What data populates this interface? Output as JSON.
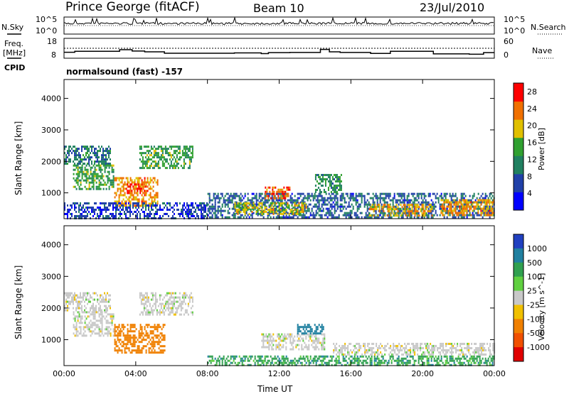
{
  "header": {
    "station": "Prince George (fitACF)",
    "beam": "Beam 10",
    "date": "23/Jul/2010"
  },
  "side_labels": {
    "nsky": "N.Sky",
    "freq_line1": "Freq.",
    "freq_line2": "[MHz]",
    "cpid": "CPID",
    "nsearch": "N.Search",
    "nave": "Nave"
  },
  "noise_axis": {
    "left_top": "10^5",
    "left_bottom": "10^0",
    "right_top": "10^5",
    "right_bottom": "10^0"
  },
  "freq_axis": {
    "left_top": "18",
    "left_bottom": "8",
    "right_top": "60",
    "right_bottom": "0"
  },
  "cpid_text": "normalsound (fast) -157",
  "time_ticks": [
    "00:00",
    "04:00",
    "08:00",
    "12:00",
    "16:00",
    "20:00",
    "00:00"
  ],
  "range_ticks": [
    "1000",
    "2000",
    "3000",
    "4000"
  ],
  "xlabel": "Time UT",
  "colors": {
    "background": "#ffffff",
    "frame": "#000000"
  },
  "chart_data": [
    {
      "type": "line",
      "panel": "noise",
      "series": [
        {
          "name": "N.Sky"
        },
        {
          "name": "N.Search"
        }
      ],
      "x_range_hours": [
        0,
        24
      ],
      "scale": "log"
    },
    {
      "type": "line",
      "panel": "frequency",
      "series": [
        {
          "name": "Freq.",
          "x_hours": [
            0,
            0.6,
            3.1,
            3.8,
            4.5,
            5.6,
            9.5,
            11.0,
            11.4,
            12.6,
            14.3,
            14.8,
            15.4,
            17.1,
            18.2,
            20.6,
            22.6,
            23.4,
            24
          ],
          "values": [
            11.0,
            11.5,
            12.3,
            11.6,
            11.2,
            10.5,
            10.7,
            10.3,
            10.8,
            10.9,
            12.4,
            11.2,
            10.9,
            10.4,
            11.5,
            10.2,
            10.0,
            10.8,
            11.0
          ]
        },
        {
          "name": "Nave",
          "x_hours": [
            0,
            24
          ],
          "values": [
            30,
            30
          ]
        }
      ],
      "x_range_hours": [
        0,
        24
      ],
      "left_ylim": [
        8,
        18
      ],
      "right_ylim": [
        0,
        60
      ]
    },
    {
      "type": "heatmap",
      "panel": "power",
      "ylabel": "Slant Range [km]",
      "xlabel": "Time UT",
      "x_range_hours": [
        0,
        24
      ],
      "ylim_km": [
        180,
        4600
      ],
      "colorbar": {
        "label": "Power [dB]",
        "ticks": [
          4,
          8,
          12,
          16,
          20,
          24,
          28
        ],
        "range": [
          0,
          30
        ],
        "colors": [
          "#0000ff",
          "#2040a8",
          "#208060",
          "#30a030",
          "#e0c000",
          "#f07000",
          "#ff0000"
        ]
      },
      "regions": [
        {
          "t0": 0.0,
          "t1": 2.6,
          "r0": 1900,
          "r1": 2500,
          "level": 10
        },
        {
          "t0": 0.5,
          "t1": 2.8,
          "r0": 1100,
          "r1": 1900,
          "level": 14
        },
        {
          "t0": 2.8,
          "t1": 5.2,
          "r0": 600,
          "r1": 1500,
          "level": 22
        },
        {
          "t0": 3.5,
          "t1": 4.6,
          "r0": 1000,
          "r1": 1300,
          "level": 27
        },
        {
          "t0": 4.2,
          "t1": 7.2,
          "r0": 1800,
          "r1": 2500,
          "level": 14
        },
        {
          "t0": 0.0,
          "t1": 8.0,
          "r0": 200,
          "r1": 700,
          "level": 6
        },
        {
          "t0": 8.0,
          "t1": 24.0,
          "r0": 200,
          "r1": 1000,
          "level": 8
        },
        {
          "t0": 9.5,
          "t1": 13.5,
          "r0": 350,
          "r1": 700,
          "level": 18
        },
        {
          "t0": 11.2,
          "t1": 12.6,
          "r0": 800,
          "r1": 1200,
          "level": 24
        },
        {
          "t0": 14.0,
          "t1": 15.5,
          "r0": 1000,
          "r1": 1600,
          "level": 12
        },
        {
          "t0": 17.0,
          "t1": 20.5,
          "r0": 250,
          "r1": 650,
          "level": 20
        },
        {
          "t0": 21.0,
          "t1": 24.0,
          "r0": 300,
          "r1": 800,
          "level": 22
        }
      ]
    },
    {
      "type": "heatmap",
      "panel": "velocity",
      "ylabel": "Slant Range [km]",
      "xlabel": "Time UT",
      "x_range_hours": [
        0,
        24
      ],
      "ylim_km": [
        180,
        4600
      ],
      "colorbar": {
        "label": "Velocity [m s^-1]",
        "ticks": [
          "1000",
          "500",
          "100",
          "25",
          "-25",
          "-100",
          "-500",
          "-1000"
        ],
        "colors": [
          "#2040c0",
          "#2080a0",
          "#30a050",
          "#60d040",
          "#c8c8c8",
          "#f0c000",
          "#f08000",
          "#f05000",
          "#e00000"
        ]
      },
      "regions": [
        {
          "t0": 0.0,
          "t1": 2.6,
          "r0": 1900,
          "r1": 2500,
          "velocity": 0
        },
        {
          "t0": 0.5,
          "t1": 2.8,
          "r0": 1100,
          "r1": 1900,
          "velocity": 0
        },
        {
          "t0": 2.8,
          "t1": 5.6,
          "r0": 600,
          "r1": 1500,
          "velocity": -300
        },
        {
          "t0": 4.2,
          "t1": 7.2,
          "r0": 1800,
          "r1": 2500,
          "velocity": 0
        },
        {
          "t0": 8.0,
          "t1": 24.0,
          "r0": 200,
          "r1": 500,
          "velocity": 80
        },
        {
          "t0": 11.0,
          "t1": 14.5,
          "r0": 700,
          "r1": 1200,
          "velocity": 0
        },
        {
          "t0": 15.0,
          "t1": 24.0,
          "r0": 500,
          "r1": 900,
          "velocity": 0
        },
        {
          "t0": 13.0,
          "t1": 14.5,
          "r0": 1200,
          "r1": 1500,
          "velocity": 150
        }
      ]
    }
  ]
}
